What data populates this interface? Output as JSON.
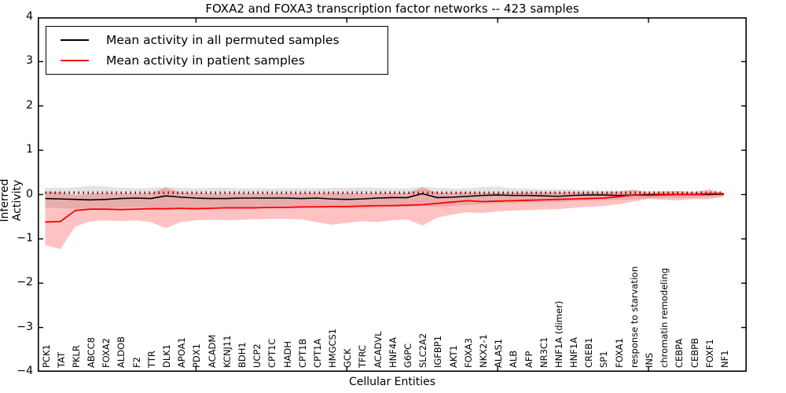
{
  "chart_data": {
    "type": "line",
    "title": "FOXA2 and FOXA3 transcription factor networks -- 423 samples",
    "xlabel": "Cellular Entities",
    "ylabel": "Inferred Activity",
    "ylim": [
      -4,
      4
    ],
    "ytick_labels": [
      "4",
      "3",
      "2",
      "1",
      "0",
      "−1",
      "−2",
      "−3",
      "−4"
    ],
    "ytick_values": [
      4,
      3,
      2,
      1,
      0,
      -1,
      -2,
      -3,
      -4
    ],
    "xtick_marks_at_indices": [
      10,
      20,
      30,
      40
    ],
    "grid": false,
    "legend_position": "upper left",
    "background_color": "#ffffff",
    "categories": [
      "PCK1",
      "TAT",
      "PKLR",
      "ABCC8",
      "FOXA2",
      "ALDOB",
      "F2",
      "TTR",
      "DLK1",
      "APOA1",
      "PDX1",
      "ACADM",
      "KCNJ11",
      "BDH1",
      "UCP2",
      "CPT1C",
      "HADH",
      "CPT1B",
      "CPT1A",
      "HMGCS1",
      "GCK",
      "TFRC",
      "ACADVL",
      "HNF4A",
      "G6PC",
      "SLC2A2",
      "IGFBP1",
      "AKT1",
      "FOXA3",
      "NKX2-1",
      "ALAS1",
      "ALB",
      "AFP",
      "NR3C1",
      "HNF1A (dimer)",
      "HNF1A",
      "CREB1",
      "SP1",
      "FOXA1",
      "response to starvation",
      "INS",
      "chromatin remodeling",
      "CEBPA",
      "CEBPB",
      "FOXF1",
      "NF1"
    ],
    "series": [
      {
        "name": "Mean activity in all permuted samples",
        "color": "#000000",
        "line_width": 1.6,
        "band_color": "rgba(0,0,0,0.11)",
        "values": [
          -0.09,
          -0.1,
          -0.11,
          -0.12,
          -0.11,
          -0.09,
          -0.08,
          -0.09,
          -0.03,
          -0.06,
          -0.08,
          -0.09,
          -0.09,
          -0.08,
          -0.08,
          -0.08,
          -0.08,
          -0.09,
          -0.08,
          -0.1,
          -0.11,
          -0.1,
          -0.08,
          -0.07,
          -0.07,
          0.02,
          -0.07,
          -0.06,
          -0.04,
          -0.02,
          -0.01,
          -0.02,
          -0.02,
          -0.03,
          -0.04,
          -0.02,
          -0.01,
          -0.01,
          -0.02,
          -0.01,
          0.0,
          0.0,
          0.0,
          0.0,
          0.0,
          0.01
        ],
        "band_top": [
          0.15,
          0.15,
          0.16,
          0.2,
          0.18,
          0.15,
          0.14,
          0.15,
          0.17,
          0.15,
          0.14,
          0.15,
          0.15,
          0.14,
          0.14,
          0.14,
          0.14,
          0.14,
          0.14,
          0.15,
          0.15,
          0.16,
          0.15,
          0.14,
          0.14,
          0.18,
          0.15,
          0.14,
          0.14,
          0.17,
          0.18,
          0.14,
          0.13,
          0.12,
          0.12,
          0.11,
          0.1,
          0.09,
          0.09,
          0.1,
          0.08,
          0.07,
          0.07,
          0.06,
          0.06,
          0.05
        ],
        "band_bottom": [
          -0.3,
          -0.31,
          -0.32,
          -0.33,
          -0.32,
          -0.3,
          -0.29,
          -0.31,
          -0.3,
          -0.29,
          -0.3,
          -0.31,
          -0.3,
          -0.3,
          -0.3,
          -0.29,
          -0.29,
          -0.3,
          -0.29,
          -0.3,
          -0.31,
          -0.31,
          -0.3,
          -0.28,
          -0.28,
          -0.26,
          -0.28,
          -0.26,
          -0.24,
          -0.22,
          -0.2,
          -0.19,
          -0.18,
          -0.17,
          -0.17,
          -0.15,
          -0.13,
          -0.12,
          -0.12,
          -0.11,
          -0.09,
          -0.08,
          -0.08,
          -0.07,
          -0.06,
          -0.05
        ]
      },
      {
        "name": "Mean activity in patient samples",
        "color": "#ff0000",
        "line_width": 1.8,
        "band_color": "rgba(255,0,0,0.24)",
        "values": [
          -0.62,
          -0.61,
          -0.36,
          -0.33,
          -0.33,
          -0.34,
          -0.33,
          -0.32,
          -0.32,
          -0.31,
          -0.32,
          -0.31,
          -0.3,
          -0.3,
          -0.3,
          -0.29,
          -0.29,
          -0.28,
          -0.28,
          -0.27,
          -0.27,
          -0.26,
          -0.25,
          -0.25,
          -0.24,
          -0.23,
          -0.2,
          -0.17,
          -0.14,
          -0.16,
          -0.15,
          -0.14,
          -0.13,
          -0.12,
          -0.11,
          -0.1,
          -0.09,
          -0.08,
          -0.05,
          -0.01,
          -0.02,
          -0.01,
          0.0,
          0.0,
          0.02,
          0.02
        ],
        "band_top": [
          0.07,
          0.05,
          -0.01,
          0.02,
          0.03,
          0.02,
          0.02,
          0.03,
          0.16,
          0.04,
          0.03,
          0.02,
          0.02,
          0.03,
          0.02,
          0.02,
          0.02,
          0.03,
          0.03,
          0.04,
          0.03,
          0.02,
          0.03,
          0.03,
          0.03,
          0.16,
          0.04,
          0.04,
          0.05,
          0.04,
          0.04,
          0.04,
          0.05,
          0.05,
          0.05,
          0.05,
          0.05,
          0.05,
          0.06,
          0.11,
          0.04,
          0.07,
          0.08,
          0.05,
          0.12,
          0.03
        ],
        "band_bottom": [
          -1.14,
          -1.23,
          -0.72,
          -0.6,
          -0.58,
          -0.6,
          -0.58,
          -0.62,
          -0.76,
          -0.62,
          -0.58,
          -0.57,
          -0.58,
          -0.57,
          -0.56,
          -0.55,
          -0.55,
          -0.56,
          -0.62,
          -0.68,
          -0.64,
          -0.6,
          -0.62,
          -0.58,
          -0.56,
          -0.7,
          -0.52,
          -0.45,
          -0.4,
          -0.42,
          -0.38,
          -0.36,
          -0.35,
          -0.34,
          -0.33,
          -0.3,
          -0.28,
          -0.26,
          -0.22,
          -0.16,
          -0.1,
          -0.12,
          -0.13,
          -0.1,
          -0.11,
          -0.04
        ],
        "sample_count": 423
      }
    ],
    "reference_lines": [
      {
        "value": 0.03,
        "style": "dotted",
        "color": "#000000"
      },
      {
        "value": 0.06,
        "style": "dotted",
        "color": "#ff0000"
      }
    ]
  }
}
